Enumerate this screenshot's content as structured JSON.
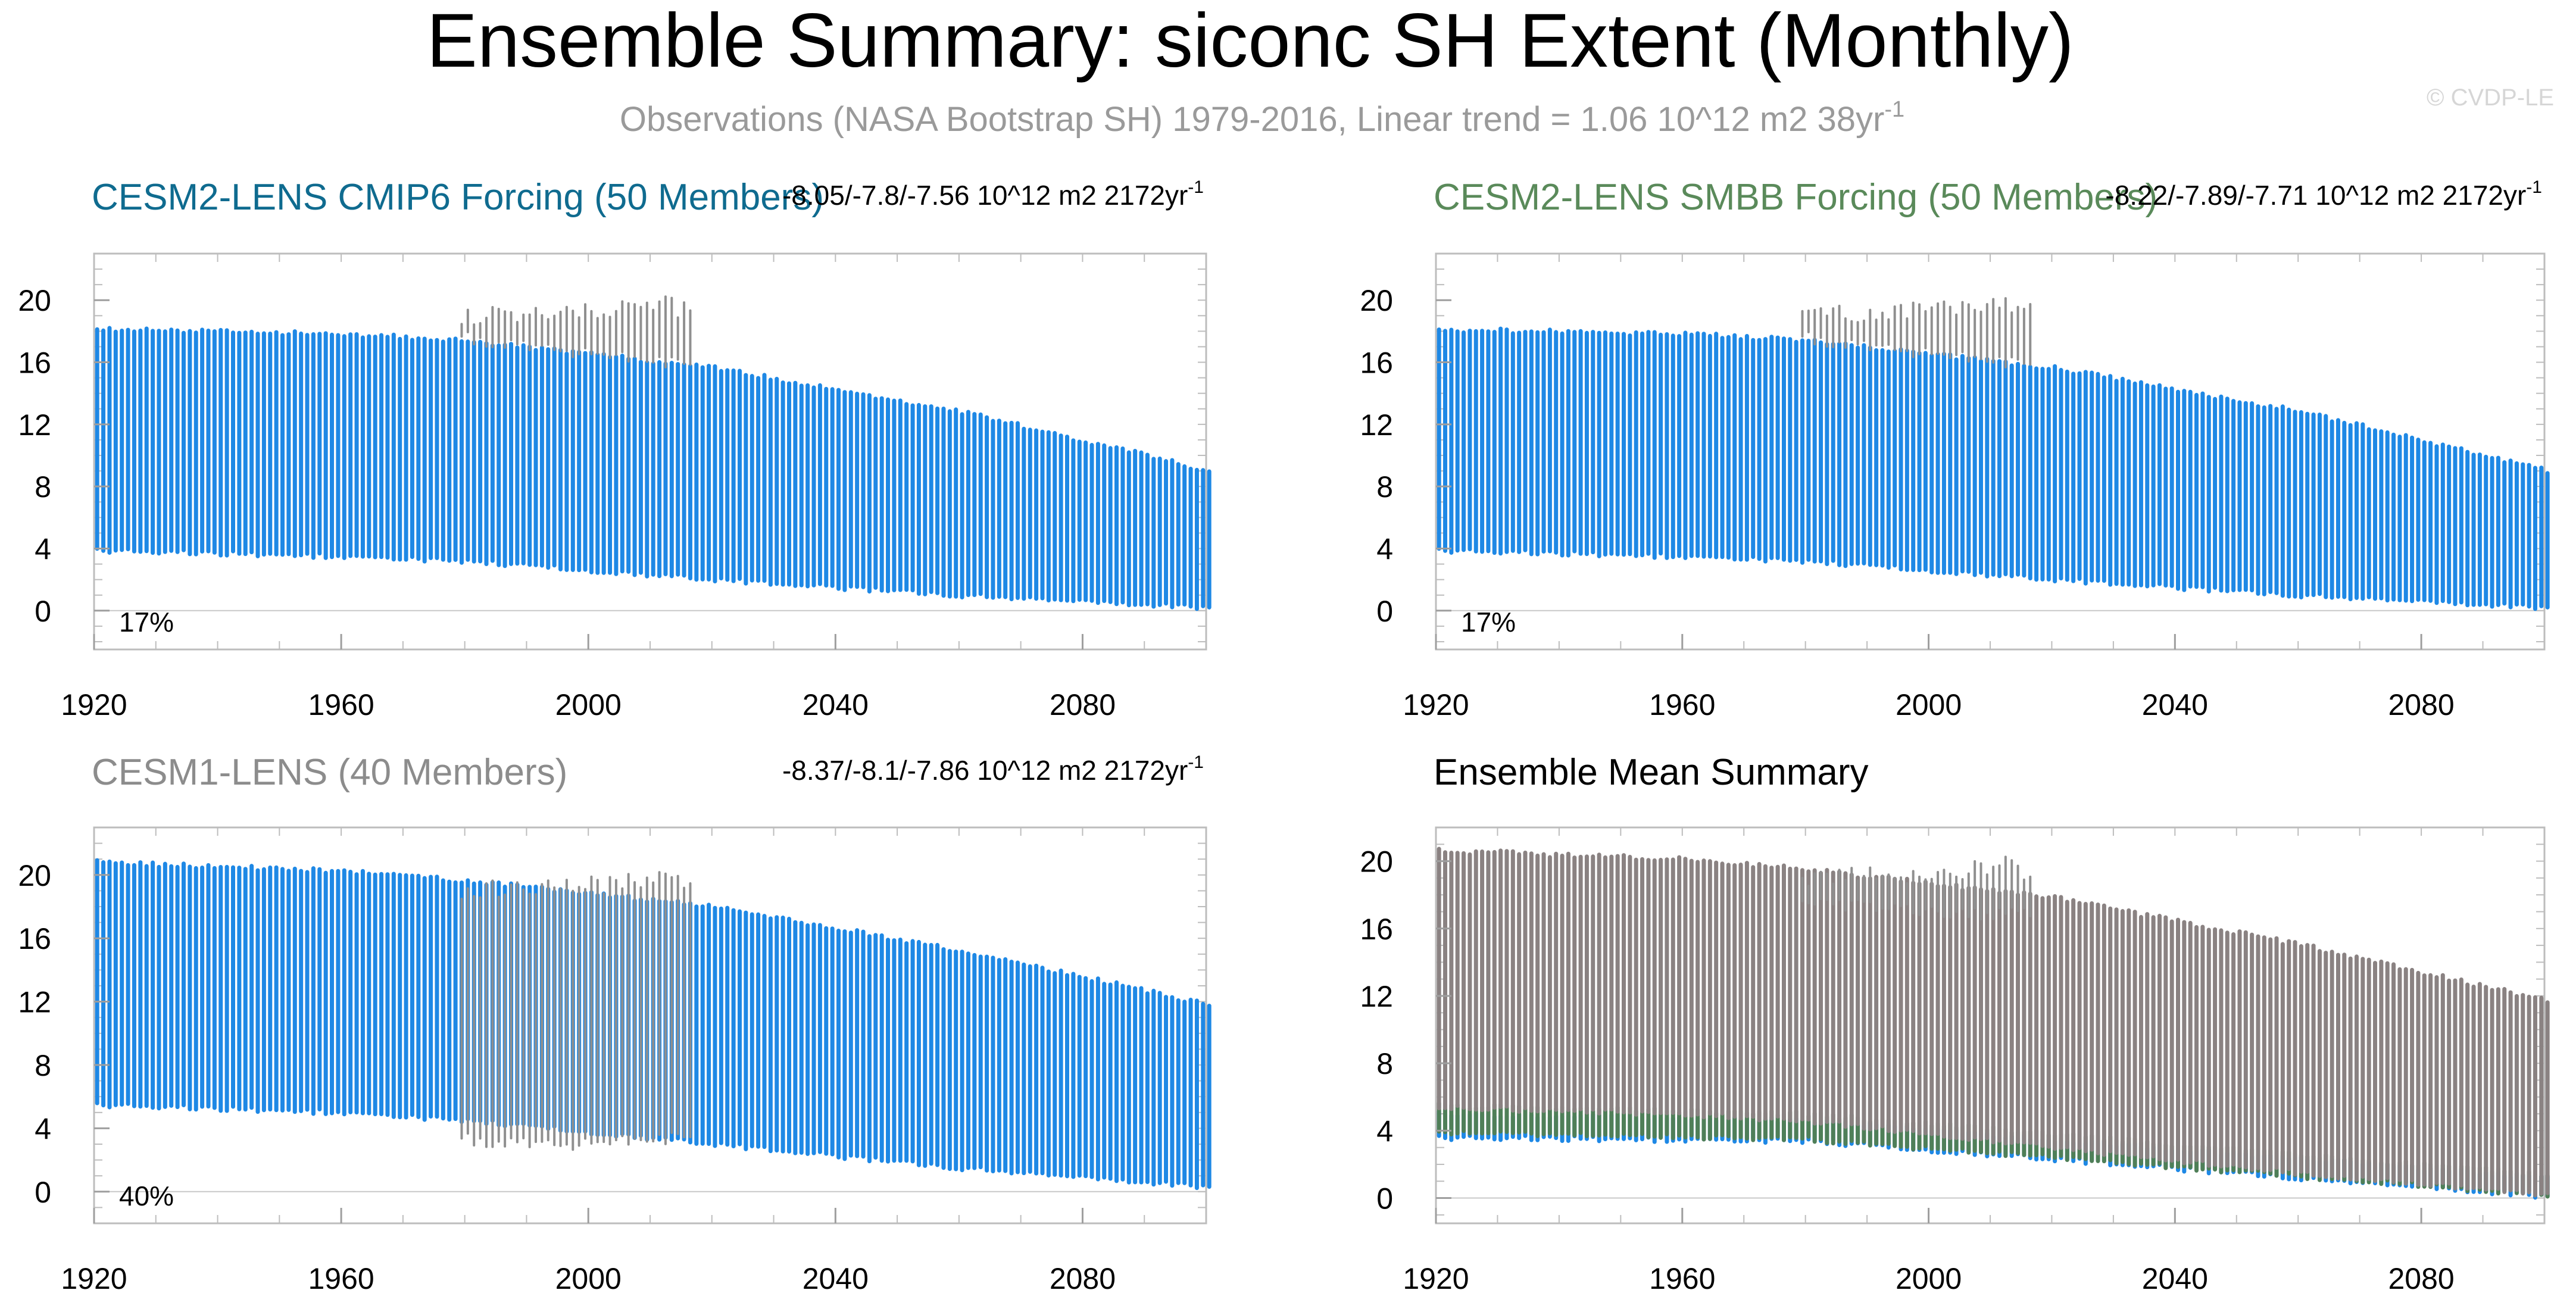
{
  "page": {
    "title": "Ensemble Summary: siconc SH Extent (Monthly)",
    "subtitle_main": "Observations (NASA Bootstrap SH) 1979-2016, Linear trend = 1.06 10^12 m2 38yr",
    "subtitle_sup": "-1",
    "watermark": "© CVDP-LE"
  },
  "colors": {
    "model_blue": "#1e88e5",
    "obs_gray": "#8f8f8f",
    "panel1_title": "#0f6b8f",
    "panel2_title": "#5a8a5a",
    "panel3_title": "#8c8c8c",
    "mean_gray": "#8a8282",
    "mean_green": "#4f7f58",
    "mean_blue": "#1e88e5",
    "frame": "#bdbdbd",
    "grid": "#c8c8c8"
  },
  "chart_data": [
    {
      "type": "line",
      "title": "CESM2-LENS CMIP6 Forcing (50 Members)",
      "trend_text": "-8.05/-7.8/-7.56 10^12 m2 2172yr",
      "trend_sup": "-1",
      "annotation": "17%",
      "xlim": [
        1920,
        2100
      ],
      "ylim": [
        -2.5,
        23
      ],
      "yticks": [
        0,
        4,
        8,
        12,
        16,
        20
      ],
      "xticks": [
        1920,
        1960,
        2000,
        2040,
        2080
      ],
      "series": [
        {
          "name": "ensemble",
          "kind": "seasonal_band",
          "start": 1920,
          "end": 2100,
          "max_knots": [
            [
              1920,
              18.1
            ],
            [
              1960,
              17.8
            ],
            [
              1980,
              17.4
            ],
            [
              2020,
              15.6
            ],
            [
              2060,
              12.8
            ],
            [
              2100,
              9.0
            ]
          ],
          "min_knots": [
            [
              1920,
              3.9
            ],
            [
              1960,
              3.5
            ],
            [
              1980,
              3.2
            ],
            [
              2020,
              2.0
            ],
            [
              2060,
              1.0
            ],
            [
              2100,
              0.2
            ]
          ]
        },
        {
          "name": "observations",
          "kind": "seasonal_band",
          "start": 1979,
          "end": 2016,
          "max_knots": [
            [
              1979,
              19.0
            ],
            [
              1995,
              19.2
            ],
            [
              2012,
              19.7
            ],
            [
              2016,
              19.2
            ]
          ],
          "min_knots": [
            [
              1979,
              17.6
            ],
            [
              2016,
              15.8
            ]
          ]
        }
      ]
    },
    {
      "type": "line",
      "title": "CESM2-LENS SMBB Forcing (50 Members)",
      "trend_text": "-8.22/-7.89/-7.71 10^12 m2 2172yr",
      "trend_sup": "-1",
      "annotation": "17%",
      "xlim": [
        1920,
        2100
      ],
      "ylim": [
        -2.5,
        23
      ],
      "yticks": [
        0,
        4,
        8,
        12,
        16,
        20
      ],
      "xticks": [
        1920,
        1960,
        2000,
        2040,
        2080
      ],
      "series": [
        {
          "name": "ensemble",
          "kind": "seasonal_band",
          "start": 1920,
          "end": 2100,
          "max_knots": [
            [
              1920,
              18.1
            ],
            [
              1960,
              17.8
            ],
            [
              1980,
              17.4
            ],
            [
              2020,
              15.6
            ],
            [
              2060,
              12.8
            ],
            [
              2100,
              9.0
            ]
          ],
          "min_knots": [
            [
              1920,
              3.9
            ],
            [
              1960,
              3.5
            ],
            [
              1980,
              3.2
            ],
            [
              2020,
              2.0
            ],
            [
              2060,
              1.0
            ],
            [
              2100,
              0.2
            ]
          ]
        },
        {
          "name": "observations",
          "kind": "seasonal_band",
          "start": 1979,
          "end": 2016,
          "max_knots": [
            [
              1979,
              19.0
            ],
            [
              1995,
              19.2
            ],
            [
              2012,
              19.7
            ],
            [
              2016,
              19.2
            ]
          ],
          "min_knots": [
            [
              1979,
              17.6
            ],
            [
              2016,
              15.8
            ]
          ]
        }
      ]
    },
    {
      "type": "line",
      "title": "CESM1-LENS (40 Members)",
      "trend_text": "-8.37/-8.1/-7.86 10^12 m2 2172yr",
      "trend_sup": "-1",
      "annotation": "40%",
      "xlim": [
        1920,
        2100
      ],
      "ylim": [
        -2,
        23
      ],
      "yticks": [
        0,
        4,
        8,
        12,
        16,
        20
      ],
      "xticks": [
        1920,
        1960,
        2000,
        2040,
        2080
      ],
      "series": [
        {
          "name": "ensemble",
          "kind": "seasonal_band",
          "start": 1920,
          "end": 2100,
          "max_knots": [
            [
              1920,
              20.8
            ],
            [
              1960,
              20.2
            ],
            [
              1980,
              19.6
            ],
            [
              2020,
              18.0
            ],
            [
              2060,
              15.2
            ],
            [
              2100,
              11.8
            ]
          ],
          "min_knots": [
            [
              1920,
              5.5
            ],
            [
              1960,
              5.0
            ],
            [
              1980,
              4.5
            ],
            [
              2020,
              3.0
            ],
            [
              2060,
              1.5
            ],
            [
              2100,
              0.3
            ]
          ]
        },
        {
          "name": "observations",
          "kind": "seasonal_band",
          "start": 1979,
          "end": 2016,
          "max_knots": [
            [
              1979,
              19.0
            ],
            [
              1995,
              19.2
            ],
            [
              2012,
              19.7
            ],
            [
              2016,
              19.2
            ]
          ],
          "min_knots": [
            [
              1979,
              3.3
            ],
            [
              1995,
              3.0
            ],
            [
              2016,
              3.4
            ]
          ]
        }
      ]
    },
    {
      "type": "line",
      "title": "Ensemble Mean Summary",
      "trend_text": "",
      "trend_sup": "",
      "annotation": "",
      "xlim": [
        1920,
        2100
      ],
      "ylim": [
        -1.5,
        22
      ],
      "yticks": [
        0,
        4,
        8,
        12,
        16,
        20
      ],
      "xticks": [
        1920,
        1960,
        2000,
        2040,
        2080
      ],
      "series": [
        {
          "name": "CESM2-LENS CMIP6 mean",
          "kind": "seasonal_band",
          "start": 1920,
          "end": 2100,
          "max_knots": [
            [
              1920,
              5.0
            ],
            [
              1980,
              4.6
            ],
            [
              2100,
              1.2
            ]
          ],
          "min_knots": [
            [
              1920,
              3.6
            ],
            [
              1980,
              3.4
            ],
            [
              2100,
              0.1
            ]
          ]
        },
        {
          "name": "CESM2-LENS SMBB mean",
          "kind": "seasonal_band",
          "start": 1920,
          "end": 2100,
          "max_knots": [
            [
              1920,
              5.5
            ],
            [
              1980,
              5.0
            ],
            [
              2100,
              1.4
            ]
          ],
          "min_knots": [
            [
              1920,
              3.9
            ],
            [
              1980,
              3.5
            ],
            [
              2100,
              0.2
            ]
          ]
        },
        {
          "name": "CESM1-LENS mean",
          "kind": "seasonal_band",
          "start": 1920,
          "end": 2100,
          "max_knots": [
            [
              1920,
              20.6
            ],
            [
              1960,
              20.1
            ],
            [
              1980,
              19.5
            ],
            [
              2020,
              17.8
            ],
            [
              2060,
              15.0
            ],
            [
              2100,
              11.7
            ]
          ],
          "min_knots": [
            [
              1920,
              5.4
            ],
            [
              1960,
              5.0
            ],
            [
              1980,
              4.6
            ],
            [
              2020,
              3.0
            ],
            [
              2060,
              1.5
            ],
            [
              2100,
              0.2
            ]
          ]
        },
        {
          "name": "observations",
          "kind": "seasonal_band",
          "start": 1979,
          "end": 2016,
          "max_knots": [
            [
              1979,
              19.0
            ],
            [
              1995,
              19.2
            ],
            [
              2012,
              19.7
            ],
            [
              2016,
              19.2
            ]
          ],
          "min_knots": [
            [
              1979,
              17.5
            ],
            [
              2016,
              16.8
            ]
          ]
        }
      ]
    }
  ]
}
